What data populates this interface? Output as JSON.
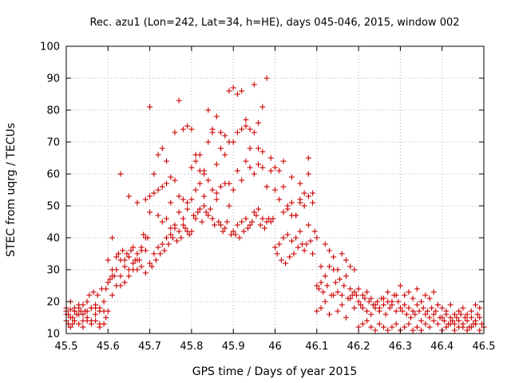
{
  "chart_data": {
    "type": "scatter",
    "title": "Rec. azu1 (Lon=242, Lat=34, h=HE), days 045-046, 2015, window 002",
    "xlabel": "GPS time / Days of year 2015",
    "ylabel": "STEC from uqrg / TECUs",
    "xlim": [
      45.5,
      46.5
    ],
    "ylim": [
      10,
      100
    ],
    "x_ticks": [
      "45.5",
      "45.6",
      "45.7",
      "45.8",
      "45.9",
      "46",
      "46.1",
      "46.2",
      "46.3",
      "46.4",
      "46.5"
    ],
    "y_ticks": [
      "10",
      "20",
      "30",
      "40",
      "50",
      "60",
      "70",
      "80",
      "90",
      "100"
    ],
    "grid": true,
    "marker": "+",
    "color": "#cc0000",
    "series": [
      {
        "name": "STEC",
        "x": [
          45.5,
          45.505,
          45.51,
          45.515,
          45.52,
          45.525,
          45.53,
          45.535,
          45.54,
          45.545,
          45.55,
          45.555,
          45.56,
          45.565,
          45.57,
          45.575,
          45.58,
          45.585,
          45.59,
          45.595,
          45.5,
          45.505,
          45.51,
          45.515,
          45.52,
          45.53,
          45.54,
          45.55,
          45.56,
          45.57,
          45.58,
          45.59,
          45.595,
          45.5,
          45.51,
          45.52,
          45.53,
          45.54,
          45.55,
          45.56,
          45.57,
          45.58,
          45.59,
          45.5,
          45.51,
          45.52,
          45.53,
          45.54,
          45.55,
          45.56,
          45.57,
          45.58,
          45.59,
          45.6,
          45.605,
          45.61,
          45.615,
          45.62,
          45.625,
          45.63,
          45.635,
          45.64,
          45.645,
          45.65,
          45.655,
          45.66,
          45.665,
          45.67,
          45.675,
          45.68,
          45.685,
          45.69,
          45.695,
          45.6,
          45.61,
          45.62,
          45.63,
          45.64,
          45.65,
          45.66,
          45.67,
          45.68,
          45.69,
          45.6,
          45.61,
          45.62,
          45.63,
          45.64,
          45.65,
          45.66,
          45.67,
          45.68,
          45.69,
          45.61,
          45.63,
          45.65,
          45.67,
          45.69,
          45.7,
          45.705,
          45.71,
          45.715,
          45.72,
          45.725,
          45.73,
          45.735,
          45.74,
          45.745,
          45.75,
          45.755,
          45.76,
          45.765,
          45.77,
          45.775,
          45.78,
          45.785,
          45.79,
          45.795,
          45.7,
          45.71,
          45.72,
          45.73,
          45.74,
          45.75,
          45.76,
          45.77,
          45.78,
          45.79,
          45.7,
          45.71,
          45.72,
          45.73,
          45.74,
          45.75,
          45.76,
          45.77,
          45.78,
          45.79,
          45.7,
          45.72,
          45.73,
          45.74,
          45.75,
          45.76,
          45.77,
          45.78,
          45.79,
          45.8,
          45.805,
          45.81,
          45.815,
          45.82,
          45.825,
          45.83,
          45.835,
          45.84,
          45.845,
          45.85,
          45.855,
          45.86,
          45.865,
          45.87,
          45.875,
          45.88,
          45.885,
          45.89,
          45.895,
          45.8,
          45.81,
          45.82,
          45.83,
          45.84,
          45.85,
          45.86,
          45.87,
          45.88,
          45.89,
          45.8,
          45.81,
          45.82,
          45.83,
          45.84,
          45.85,
          45.86,
          45.87,
          45.88,
          45.89,
          45.8,
          45.81,
          45.82,
          45.83,
          45.84,
          45.85,
          45.86,
          45.87,
          45.88,
          45.89,
          45.9,
          45.905,
          45.91,
          45.915,
          45.92,
          45.925,
          45.93,
          45.935,
          45.94,
          45.945,
          45.95,
          45.955,
          45.96,
          45.965,
          45.97,
          45.975,
          45.98,
          45.985,
          45.99,
          45.995,
          45.9,
          45.91,
          45.92,
          45.93,
          45.94,
          45.95,
          45.96,
          45.97,
          45.98,
          45.99,
          45.9,
          45.91,
          45.92,
          45.93,
          45.94,
          45.95,
          45.96,
          45.97,
          45.98,
          45.99,
          45.9,
          45.91,
          45.92,
          45.93,
          45.94,
          45.95,
          45.96,
          45.97,
          45.98,
          46.0,
          46.005,
          46.01,
          46.015,
          46.02,
          46.025,
          46.03,
          46.035,
          46.04,
          46.045,
          46.05,
          46.055,
          46.06,
          46.065,
          46.07,
          46.075,
          46.08,
          46.085,
          46.09,
          46.095,
          46.0,
          46.01,
          46.02,
          46.03,
          46.04,
          46.05,
          46.06,
          46.07,
          46.08,
          46.09,
          46.0,
          46.01,
          46.02,
          46.03,
          46.04,
          46.05,
          46.06,
          46.07,
          46.08,
          46.09,
          46.02,
          46.04,
          46.06,
          46.08,
          46.1,
          46.105,
          46.11,
          46.115,
          46.12,
          46.125,
          46.13,
          46.135,
          46.14,
          46.145,
          46.15,
          46.155,
          46.16,
          46.165,
          46.17,
          46.175,
          46.18,
          46.185,
          46.19,
          46.195,
          46.1,
          46.11,
          46.12,
          46.13,
          46.14,
          46.15,
          46.16,
          46.17,
          46.18,
          46.19,
          46.1,
          46.11,
          46.12,
          46.13,
          46.14,
          46.15,
          46.16,
          46.17,
          46.18,
          46.19,
          46.2,
          46.205,
          46.21,
          46.215,
          46.22,
          46.225,
          46.23,
          46.235,
          46.24,
          46.245,
          46.25,
          46.255,
          46.26,
          46.265,
          46.27,
          46.275,
          46.28,
          46.285,
          46.29,
          46.295,
          46.2,
          46.21,
          46.22,
          46.23,
          46.24,
          46.25,
          46.26,
          46.27,
          46.28,
          46.29,
          46.2,
          46.21,
          46.22,
          46.23,
          46.24,
          46.25,
          46.26,
          46.27,
          46.28,
          46.29,
          46.3,
          46.305,
          46.31,
          46.315,
          46.32,
          46.325,
          46.33,
          46.335,
          46.34,
          46.345,
          46.35,
          46.355,
          46.36,
          46.365,
          46.37,
          46.375,
          46.38,
          46.385,
          46.39,
          46.395,
          46.3,
          46.31,
          46.32,
          46.33,
          46.34,
          46.35,
          46.36,
          46.37,
          46.38,
          46.39,
          46.3,
          46.31,
          46.32,
          46.33,
          46.34,
          46.35,
          46.36,
          46.37,
          46.38,
          46.39,
          46.4,
          46.405,
          46.41,
          46.415,
          46.42,
          46.425,
          46.43,
          46.435,
          46.44,
          46.445,
          46.45,
          46.455,
          46.46,
          46.465,
          46.47,
          46.475,
          46.48,
          46.485,
          46.49,
          46.495,
          46.4,
          46.41,
          46.42,
          46.43,
          46.44,
          46.45,
          46.46,
          46.47,
          46.48,
          46.49,
          46.4,
          46.41,
          46.42,
          46.43,
          46.44,
          46.45,
          46.46,
          46.47,
          46.48,
          46.49,
          46.5
        ],
        "y": [
          17,
          16,
          17.5,
          15,
          18,
          16,
          18,
          17,
          19,
          17,
          17,
          22,
          18,
          23,
          19,
          22,
          18,
          24,
          20,
          24,
          14,
          13,
          12,
          13,
          14,
          13,
          12,
          14,
          13,
          14,
          12,
          13,
          15,
          16,
          15,
          17,
          16,
          14,
          15,
          14,
          18,
          13,
          17,
          18,
          20,
          17,
          19,
          16,
          20,
          18,
          16,
          17,
          13,
          26,
          27,
          30,
          28,
          34,
          35,
          33,
          36,
          33,
          35,
          34,
          36,
          37,
          33,
          35,
          33,
          36,
          41,
          36,
          40,
          17,
          22,
          25,
          28,
          31,
          30,
          32,
          30,
          31,
          29,
          33,
          28,
          30,
          25,
          26,
          28,
          30,
          33,
          37,
          40,
          40,
          60,
          53,
          51,
          52,
          32,
          31,
          35,
          33,
          37,
          35,
          38,
          36,
          40,
          38,
          41,
          40,
          43,
          39,
          42,
          40,
          44,
          43,
          42,
          41,
          48,
          60,
          47,
          45,
          46,
          43,
          44,
          48,
          46,
          49,
          53,
          54,
          55,
          56,
          57,
          51,
          58,
          53,
          52,
          51,
          81,
          66,
          68,
          64,
          59,
          73,
          83,
          74,
          75,
          42,
          47,
          46,
          48,
          49,
          45,
          50,
          48,
          47,
          49,
          46,
          44,
          52,
          45,
          44,
          42,
          43,
          45,
          50,
          41,
          52,
          55,
          57,
          53,
          58,
          55,
          54,
          56,
          57,
          57,
          62,
          64,
          66,
          60,
          70,
          74,
          63,
          68,
          72,
          70,
          74,
          66,
          61,
          61,
          80,
          73,
          78,
          73,
          66,
          86,
          42,
          41,
          44,
          40,
          45,
          42,
          46,
          43,
          44,
          45,
          48,
          47,
          49,
          44,
          46,
          43,
          45,
          46,
          45,
          46,
          55,
          61,
          58,
          64,
          62,
          60,
          63,
          62,
          56,
          61,
          70,
          73,
          74,
          77,
          68,
          73,
          68,
          67,
          56,
          65,
          87,
          85,
          86,
          75,
          74,
          88,
          76,
          81,
          90,
          37,
          35,
          38,
          33,
          40,
          32,
          41,
          34,
          39,
          35,
          40,
          37,
          42,
          38,
          36,
          38,
          44,
          39,
          35,
          42,
          62,
          52,
          48,
          49,
          51,
          47,
          52,
          50,
          53,
          54,
          55,
          61,
          56,
          50,
          47,
          47,
          51,
          54,
          60,
          51,
          64,
          59,
          57,
          65,
          25,
          24,
          26,
          23,
          28,
          25,
          31,
          22,
          30,
          26,
          23,
          27,
          22,
          25,
          28,
          21,
          24,
          22,
          23,
          22,
          40,
          31,
          38,
          36,
          34,
          30,
          35,
          33,
          31,
          30,
          17,
          18,
          20,
          16,
          22,
          17,
          19,
          15,
          21,
          18,
          20,
          19,
          18,
          21,
          17,
          20,
          16,
          19,
          18,
          20,
          17,
          21,
          19,
          16,
          20,
          18,
          19,
          22,
          17,
          20,
          24,
          22,
          23,
          21,
          19,
          18,
          21,
          23,
          20,
          22,
          12,
          13,
          14,
          12,
          11,
          13,
          12,
          11,
          12,
          13,
          18,
          17,
          19,
          16,
          18,
          15,
          17,
          16,
          19,
          17,
          14,
          18,
          16,
          17,
          15,
          18,
          16,
          17,
          19,
          15,
          25,
          22,
          23,
          21,
          24,
          20,
          22,
          21,
          23,
          19,
          11,
          12,
          13,
          11,
          12,
          11,
          13,
          12,
          14,
          13,
          15,
          14,
          16,
          13,
          15,
          14,
          13,
          15,
          14,
          16,
          13,
          15,
          14,
          12,
          15,
          13,
          14,
          16,
          15,
          13,
          18,
          17,
          19,
          16,
          17,
          18,
          16,
          17,
          19,
          18,
          11,
          12,
          13,
          11,
          12,
          12,
          11,
          12,
          13,
          11,
          12
        ]
      }
    ]
  }
}
